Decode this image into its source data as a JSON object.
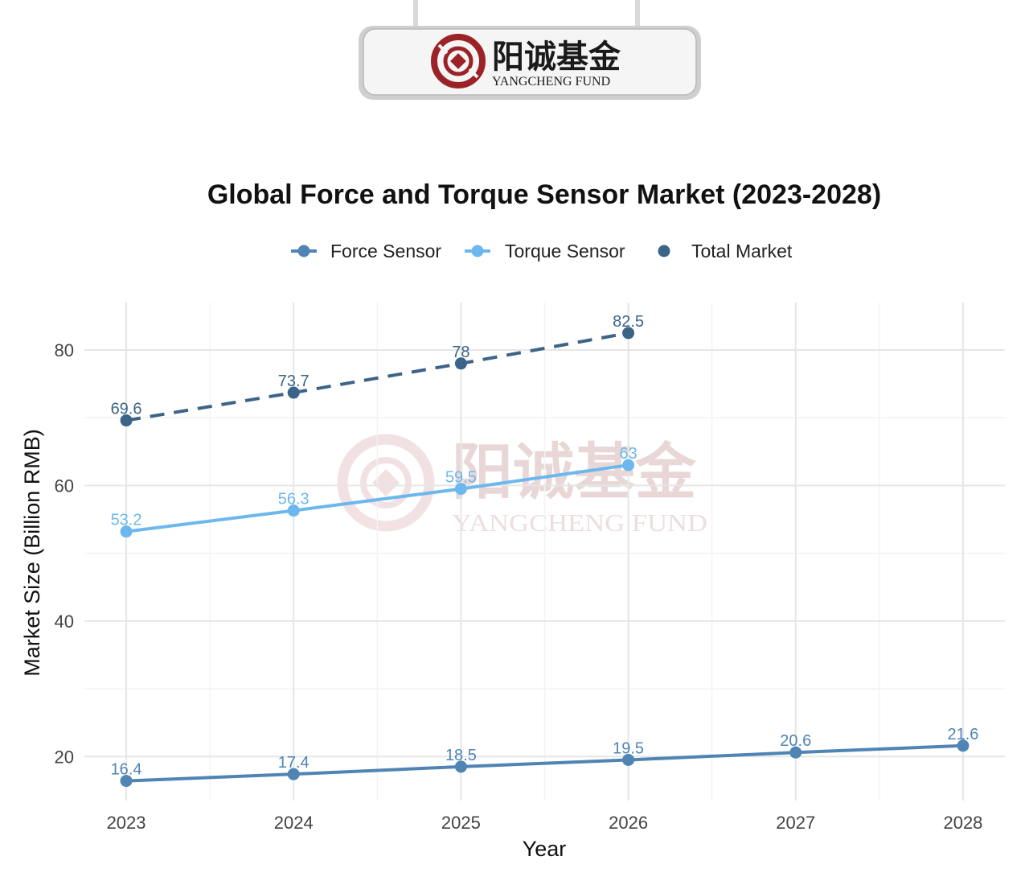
{
  "brand": {
    "name_cn": "阳诚基金",
    "name_en": "YANGCHENG FUND",
    "colors": {
      "red": "#9b2226",
      "dark_red": "#7a1a1e",
      "sign_bg": "#f4f4f4"
    }
  },
  "watermark": {
    "name_cn": "阳诚基金",
    "name_en": "YANGCHENG FUND"
  },
  "chart_data": {
    "type": "line",
    "title": "Global Force and Torque Sensor Market (2023-2028)",
    "xlabel": "Year",
    "ylabel": "Market Size (Billion RMB)",
    "x": [
      2023,
      2024,
      2025,
      2026,
      2027,
      2028
    ],
    "xlim": [
      2022.75,
      2028.25
    ],
    "ylim": [
      13.5,
      87
    ],
    "yticks": [
      20,
      40,
      60,
      80
    ],
    "grid": true,
    "legend_position": "top",
    "series": [
      {
        "name": "Force Sensor",
        "color": "#4f84b4",
        "dashed": false,
        "x": [
          2023,
          2024,
          2025,
          2026,
          2027,
          2028
        ],
        "values": [
          16.4,
          17.4,
          18.5,
          19.5,
          20.6,
          21.6
        ],
        "labels": [
          "16.4",
          "17.4",
          "18.5",
          "19.5",
          "20.6",
          "21.6"
        ]
      },
      {
        "name": "Torque Sensor",
        "color": "#6cb8ee",
        "dashed": false,
        "x": [
          2023,
          2024,
          2025,
          2026
        ],
        "values": [
          53.2,
          56.3,
          59.5,
          63
        ],
        "labels": [
          "53.2",
          "56.3",
          "59.5",
          "63"
        ]
      },
      {
        "name": "Total Market",
        "color": "#3c6488",
        "dashed": true,
        "x": [
          2023,
          2024,
          2025,
          2026
        ],
        "values": [
          69.6,
          73.7,
          78,
          82.5
        ],
        "labels": [
          "69.6",
          "73.7",
          "78",
          "82.5"
        ]
      }
    ]
  }
}
